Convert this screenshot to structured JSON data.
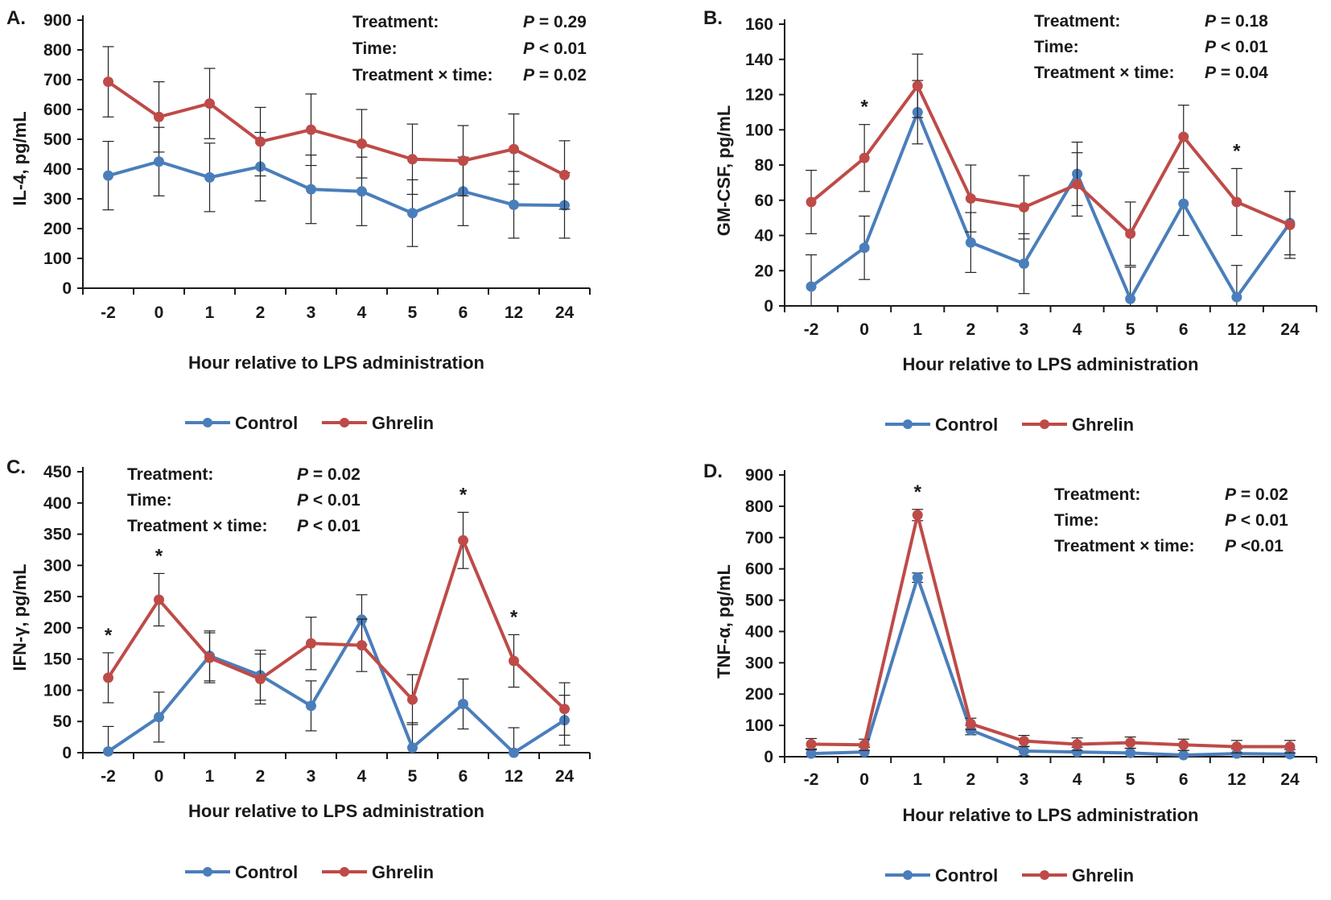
{
  "figure": {
    "categories": [
      "-2",
      "0",
      "1",
      "2",
      "3",
      "4",
      "5",
      "6",
      "12",
      "24"
    ],
    "xlabel": "Hour relative to LPS administration",
    "colors": {
      "Control": "#4a7ebb",
      "Ghrelin": "#be4b48",
      "text": "#1a1a1a",
      "axis": "#1a1a1a"
    }
  },
  "chart_data": [
    {
      "type": "line",
      "panel_label": "A.",
      "ylabel": "IL-4, pg/mL",
      "ylim": [
        0,
        900
      ],
      "yticks": [
        0,
        100,
        200,
        300,
        400,
        500,
        600,
        700,
        800,
        900
      ],
      "categories": [
        "-2",
        "0",
        "1",
        "2",
        "3",
        "4",
        "5",
        "6",
        "12",
        "24"
      ],
      "xlabel": "Hour relative to LPS administration",
      "series": [
        {
          "name": "Control",
          "values": [
            378,
            425,
            372,
            408,
            332,
            325,
            252,
            325,
            280,
            278
          ],
          "errors": [
            115,
            115,
            115,
            115,
            115,
            115,
            112,
            115,
            112,
            110
          ]
        },
        {
          "name": "Ghrelin",
          "values": [
            693,
            575,
            620,
            492,
            532,
            485,
            433,
            428,
            467,
            380
          ],
          "errors": [
            118,
            118,
            118,
            115,
            120,
            115,
            118,
            118,
            118,
            115
          ]
        }
      ],
      "significance": [],
      "stats": [
        {
          "label": "Treatment:",
          "value": "P = 0.29"
        },
        {
          "label": "Time:",
          "value": "P < 0.01"
        },
        {
          "label": "Treatment × time:",
          "value": "P = 0.02"
        }
      ],
      "legend": [
        "Control",
        "Ghrelin"
      ]
    },
    {
      "type": "line",
      "panel_label": "B.",
      "ylabel": "GM-CSF, pg/mL",
      "ylim": [
        0,
        160
      ],
      "yticks": [
        0,
        20,
        40,
        60,
        80,
        100,
        120,
        140,
        160
      ],
      "categories": [
        "-2",
        "0",
        "1",
        "2",
        "3",
        "4",
        "5",
        "6",
        "12",
        "24"
      ],
      "xlabel": "Hour relative to LPS administration",
      "series": [
        {
          "name": "Control",
          "values": [
            11,
            33,
            110,
            36,
            24,
            75,
            4,
            58,
            5,
            47
          ],
          "errors": [
            18,
            18,
            18,
            17,
            17,
            18,
            18,
            18,
            18,
            18
          ]
        },
        {
          "name": "Ghrelin",
          "values": [
            59,
            84,
            125,
            61,
            56,
            69,
            41,
            96,
            59,
            46
          ],
          "errors": [
            18,
            19,
            18,
            19,
            18,
            18,
            18,
            18,
            19,
            19
          ]
        }
      ],
      "significance": [
        "0",
        "12"
      ],
      "stats": [
        {
          "label": "Treatment:",
          "value": "P = 0.18"
        },
        {
          "label": "Time:",
          "value": "P < 0.01"
        },
        {
          "label": "Treatment × time:",
          "value": "P = 0.04"
        }
      ],
      "legend": [
        "Control",
        "Ghrelin"
      ]
    },
    {
      "type": "line",
      "panel_label": "C.",
      "ylabel": "IFN-γ, pg/mL",
      "ylim": [
        0,
        450
      ],
      "yticks": [
        0,
        50,
        100,
        150,
        200,
        250,
        300,
        350,
        400,
        450
      ],
      "categories": [
        "-2",
        "0",
        "1",
        "2",
        "3",
        "4",
        "5",
        "6",
        "12",
        "24"
      ],
      "xlabel": "Hour relative to LPS administration",
      "series": [
        {
          "name": "Control",
          "values": [
            2,
            57,
            155,
            124,
            75,
            213,
            8,
            78,
            0,
            52
          ],
          "errors": [
            40,
            40,
            40,
            40,
            40,
            40,
            40,
            40,
            40,
            40
          ]
        },
        {
          "name": "Ghrelin",
          "values": [
            120,
            245,
            152,
            118,
            175,
            172,
            85,
            340,
            147,
            70
          ],
          "errors": [
            40,
            42,
            40,
            40,
            42,
            42,
            40,
            45,
            42,
            42
          ]
        }
      ],
      "significance": [
        "-2",
        "0",
        "6",
        "12"
      ],
      "stats": [
        {
          "label": "Treatment:",
          "value": "P = 0.02"
        },
        {
          "label": "Time:",
          "value": "P < 0.01"
        },
        {
          "label": "Treatment × time:",
          "value": "P < 0.01"
        }
      ],
      "legend": [
        "Control",
        "Ghrelin"
      ]
    },
    {
      "type": "line",
      "panel_label": "D.",
      "ylabel": "TNF-α, pg/mL",
      "ylim": [
        0,
        900
      ],
      "yticks": [
        0,
        100,
        200,
        300,
        400,
        500,
        600,
        700,
        800,
        900
      ],
      "categories": [
        "-2",
        "0",
        "1",
        "2",
        "3",
        "4",
        "5",
        "6",
        "12",
        "24"
      ],
      "xlabel": "Hour relative to LPS administration",
      "series": [
        {
          "name": "Control",
          "values": [
            10,
            15,
            572,
            85,
            18,
            15,
            12,
            5,
            10,
            8
          ],
          "errors": [
            15,
            15,
            15,
            15,
            15,
            15,
            15,
            15,
            15,
            15
          ]
        },
        {
          "name": "Ghrelin",
          "values": [
            40,
            38,
            772,
            105,
            50,
            40,
            45,
            38,
            32,
            32
          ],
          "errors": [
            18,
            18,
            18,
            18,
            18,
            20,
            18,
            18,
            20,
            20
          ]
        }
      ],
      "significance": [
        "1"
      ],
      "stats": [
        {
          "label": "Treatment:",
          "value": "P = 0.02"
        },
        {
          "label": "Time:",
          "value": "P < 0.01"
        },
        {
          "label": "Treatment × time:",
          "value": "P <0.01"
        }
      ],
      "legend": [
        "Control",
        "Ghrelin"
      ]
    }
  ]
}
